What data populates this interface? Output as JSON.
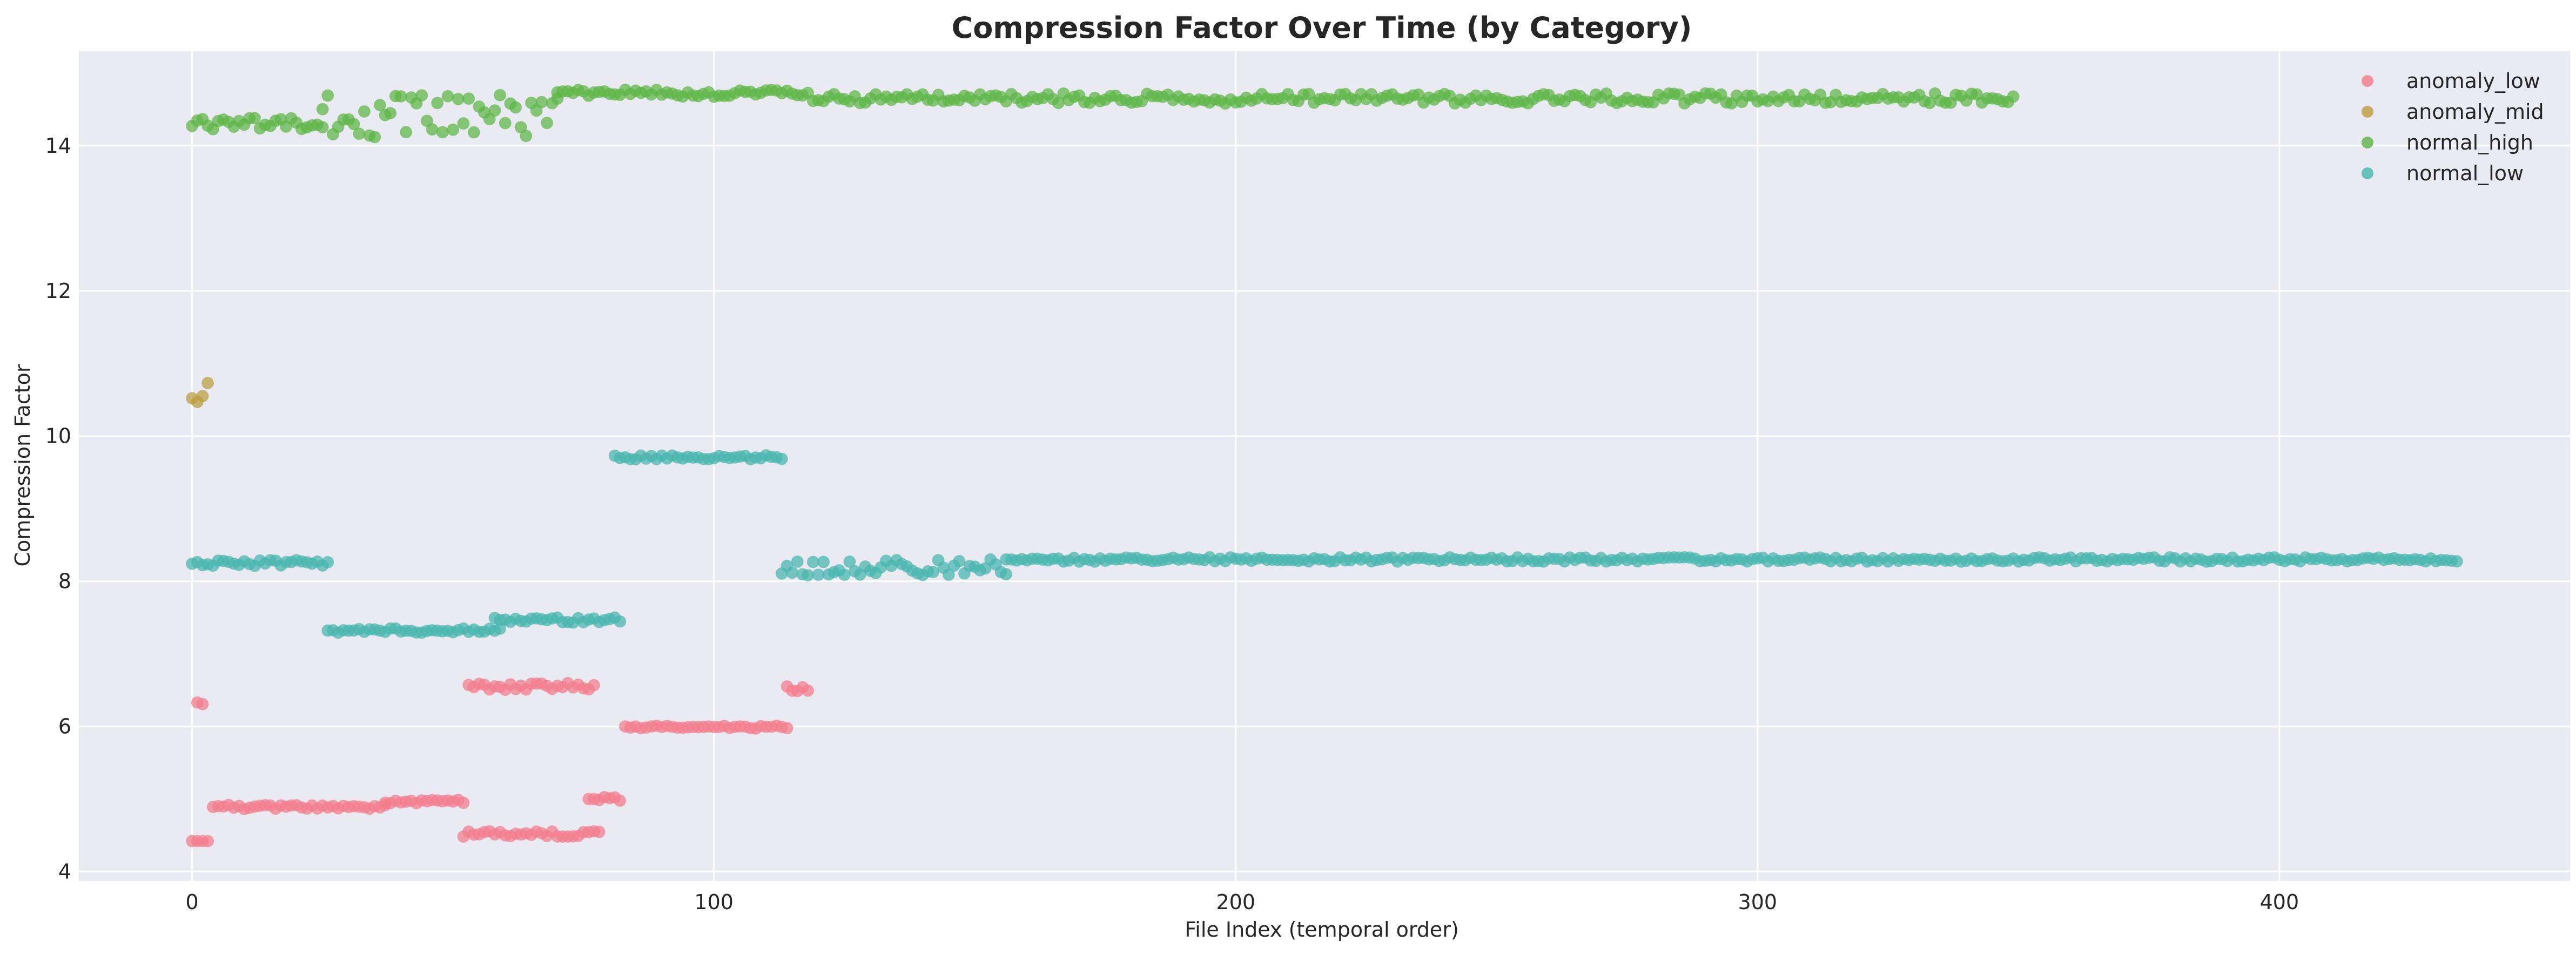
{
  "chart_data": {
    "type": "scatter",
    "title": "Compression Factor Over Time (by Category)",
    "xlabel": "File Index (temporal order)",
    "ylabel": "Compression Factor",
    "xlim": [
      -21.7,
      455.7
    ],
    "ylim": [
      3.87,
      15.3
    ],
    "xticks": [
      0,
      100,
      200,
      300,
      400
    ],
    "yticks": [
      4,
      6,
      8,
      10,
      12,
      14
    ],
    "grid": true,
    "legend_position": "top-right",
    "series": [
      {
        "name": "anomaly_low",
        "color": "#f37b8b",
        "segments": [
          {
            "x": [
              0,
              3
            ],
            "y": 4.42,
            "noise": 0.0
          },
          {
            "x": [
              1,
              2
            ],
            "y": 6.31,
            "noise": 0.02
          },
          {
            "x": [
              4,
              37
            ],
            "y": 4.89,
            "noise": 0.03
          },
          {
            "x": [
              37,
              52
            ],
            "y": 4.97,
            "noise": 0.03
          },
          {
            "x": [
              52,
              78
            ],
            "y": 4.52,
            "noise": 0.04
          },
          {
            "x": [
              53,
              77
            ],
            "y": 6.55,
            "noise": 0.05
          },
          {
            "x": [
              76,
              82
            ],
            "y": 5.0,
            "noise": 0.03
          },
          {
            "x": [
              83,
              114
            ],
            "y": 5.99,
            "noise": 0.02
          },
          {
            "x": [
              114,
              118
            ],
            "y": 6.52,
            "noise": 0.06
          }
        ]
      },
      {
        "name": "anomaly_mid",
        "color": "#bb9d3f",
        "points": [
          [
            0,
            10.52
          ],
          [
            1,
            10.47
          ],
          [
            2,
            10.55
          ],
          [
            3,
            10.73
          ]
        ]
      },
      {
        "name": "normal_high",
        "color": "#5bb544",
        "segments": [
          {
            "x": [
              0,
              25
            ],
            "y": 14.3,
            "noise": 0.08
          },
          {
            "x": [
              25,
              70
            ],
            "y": 14.4,
            "noise": 0.3
          },
          {
            "x": [
              70,
              118
            ],
            "y": 14.72,
            "noise": 0.05
          },
          {
            "x": [
              119,
              349
            ],
            "y": 14.65,
            "noise": 0.07
          }
        ]
      },
      {
        "name": "normal_low",
        "color": "#45b6ad",
        "segments": [
          {
            "x": [
              0,
              26
            ],
            "y": 8.25,
            "noise": 0.04
          },
          {
            "x": [
              26,
              59
            ],
            "y": 7.32,
            "noise": 0.03
          },
          {
            "x": [
              58,
              82
            ],
            "y": 7.47,
            "noise": 0.04
          },
          {
            "x": [
              81,
              113
            ],
            "y": 9.71,
            "noise": 0.03
          },
          {
            "x": [
              113,
              156
            ],
            "y": 8.2,
            "noise": 0.12
          },
          {
            "x": [
              156,
              434
            ],
            "y": 8.3,
            "noise": 0.03
          }
        ]
      }
    ]
  }
}
